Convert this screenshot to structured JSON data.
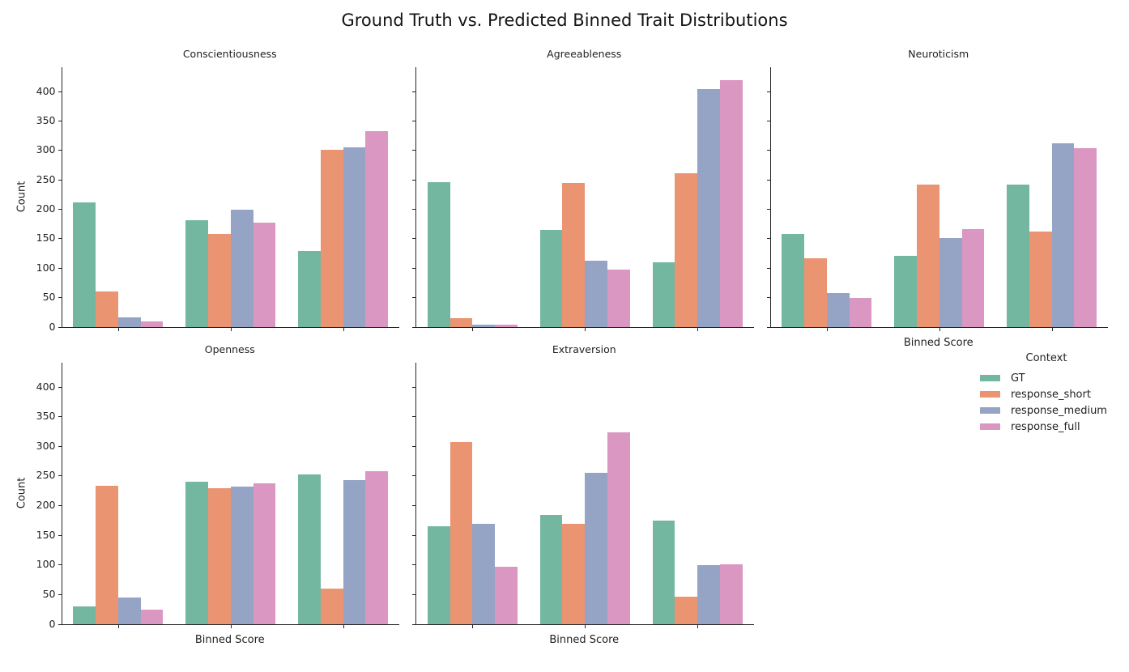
{
  "title": "Ground Truth vs. Predicted Binned Trait Distributions",
  "chart_data": {
    "type": "bar",
    "title": "Ground Truth vs. Predicted Binned Trait Distributions",
    "xlabel": "Binned Score",
    "ylabel": "Count",
    "ylim": [
      0,
      441
    ],
    "yticks": [
      0,
      50,
      100,
      150,
      200,
      250,
      300,
      350,
      400
    ],
    "categories": [
      "",
      "",
      ""
    ],
    "grid": false,
    "legend": {
      "title": "Context",
      "position": "right",
      "entries": [
        {
          "label": "GT",
          "color": "#73b7a1"
        },
        {
          "label": "response_short",
          "color": "#ea9472"
        },
        {
          "label": "response_medium",
          "color": "#95a4c5"
        },
        {
          "label": "response_full",
          "color": "#da97c1"
        }
      ]
    },
    "facets": [
      {
        "title": "Conscientiousness",
        "series": [
          {
            "name": "GT",
            "values": [
              211,
              181,
              128
            ]
          },
          {
            "name": "response_short",
            "values": [
              60,
              158,
              301
            ]
          },
          {
            "name": "response_medium",
            "values": [
              16,
              199,
              305
            ]
          },
          {
            "name": "response_full",
            "values": [
              9,
              177,
              333
            ]
          }
        ]
      },
      {
        "title": "Agreeableness",
        "series": [
          {
            "name": "GT",
            "values": [
              246,
              164,
              110
            ]
          },
          {
            "name": "response_short",
            "values": [
              15,
              244,
              261
            ]
          },
          {
            "name": "response_medium",
            "values": [
              4,
              112,
              404
            ]
          },
          {
            "name": "response_full",
            "values": [
              4,
              97,
              419
            ]
          }
        ]
      },
      {
        "title": "Neuroticism",
        "series": [
          {
            "name": "GT",
            "values": [
              158,
              120,
              242
            ]
          },
          {
            "name": "response_short",
            "values": [
              116,
              242,
              162
            ]
          },
          {
            "name": "response_medium",
            "values": [
              57,
              151,
              312
            ]
          },
          {
            "name": "response_full",
            "values": [
              49,
              166,
              303
            ]
          }
        ]
      },
      {
        "title": "Openness",
        "series": [
          {
            "name": "GT",
            "values": [
              29,
              239,
              252
            ]
          },
          {
            "name": "response_short",
            "values": [
              233,
              229,
              60
            ]
          },
          {
            "name": "response_medium",
            "values": [
              45,
              231,
              243
            ]
          },
          {
            "name": "response_full",
            "values": [
              24,
              237,
              258
            ]
          }
        ]
      },
      {
        "title": "Extraversion",
        "series": [
          {
            "name": "GT",
            "values": [
              164,
              183,
              174
            ]
          },
          {
            "name": "response_short",
            "values": [
              307,
              168,
              46
            ]
          },
          {
            "name": "response_medium",
            "values": [
              168,
              254,
              99
            ]
          },
          {
            "name": "response_full",
            "values": [
              96,
              323,
              101
            ]
          }
        ]
      }
    ]
  }
}
